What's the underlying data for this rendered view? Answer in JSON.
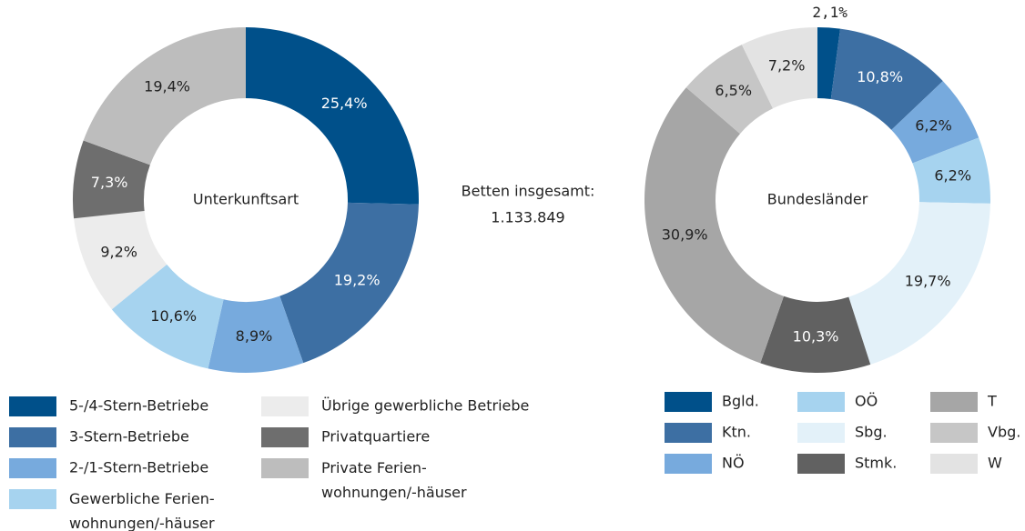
{
  "chart_data": [
    {
      "type": "pie",
      "center_label": "Unterkunftsart",
      "categories": [
        "5-/4-Stern-Betriebe",
        "3-Stern-Betriebe",
        "2-/1-Stern-Betriebe",
        "Gewerbliche Ferien-\nwohnungen/-häuser",
        "Übrige gewerbliche Betriebe",
        "Privatquartiere",
        "Private Ferien-\nwohnungen/-häuser"
      ],
      "values": [
        25.4,
        19.2,
        8.9,
        10.6,
        9.2,
        7.3,
        19.4
      ],
      "value_labels": [
        "25,4%",
        "19,2%",
        "8,9%",
        "10,6%",
        "9,2%",
        "7,3%",
        "19,4%"
      ],
      "colors": [
        "#00508a",
        "#3d6fa3",
        "#77aadd",
        "#a6d3ef",
        "#ececec",
        "#6e6e6e",
        "#bdbdbd"
      ]
    },
    {
      "type": "pie",
      "center_label": "Bundesländer",
      "categories": [
        "Bgld.",
        "Ktn.",
        "NÖ",
        "OÖ",
        "Sbg.",
        "Stmk.",
        "T",
        "Vbg.",
        "W"
      ],
      "values": [
        2.1,
        10.8,
        6.2,
        6.2,
        19.7,
        10.3,
        30.9,
        6.5,
        7.2
      ],
      "value_labels": [
        "2,1%",
        "10,8%",
        "6,2%",
        "6,2%",
        "19,7%",
        "10,3%",
        "30,9%",
        "6,5%",
        "7,2%"
      ],
      "colors": [
        "#00508a",
        "#3d6fa3",
        "#77aadd",
        "#a6d3ef",
        "#e3f1f9",
        "#616161",
        "#a6a6a6",
        "#c6c6c6",
        "#e3e3e3"
      ]
    }
  ],
  "annotation": [
    "Betten insgesamt:",
    "1.133.849"
  ]
}
